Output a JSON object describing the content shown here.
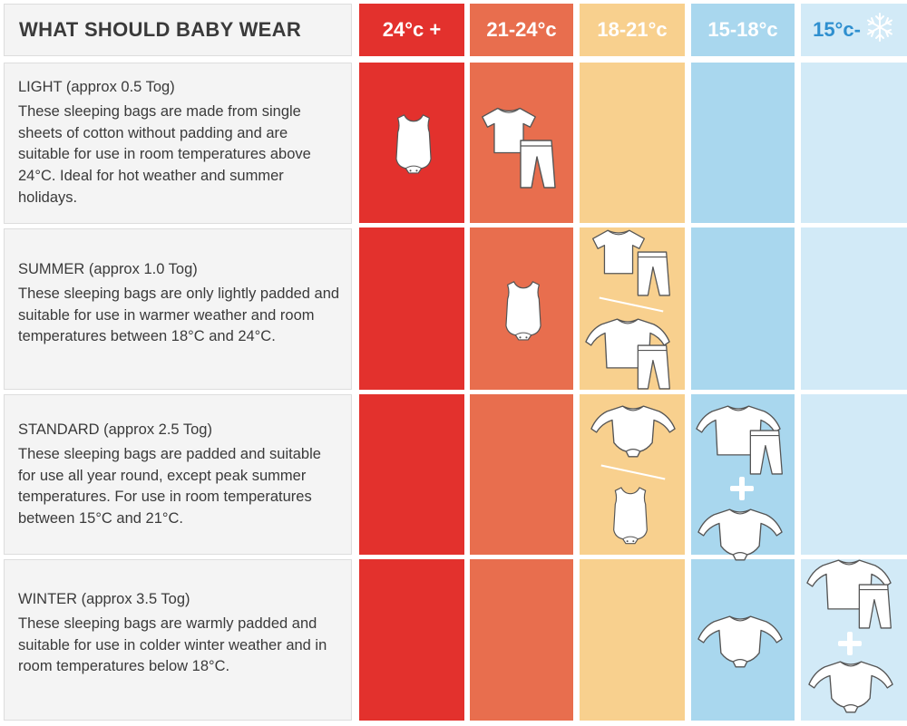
{
  "header": {
    "title": "WHAT SHOULD BABY WEAR",
    "columns": [
      {
        "label": "24°c +",
        "color": "#e3312d",
        "text_color": "#ffffff"
      },
      {
        "label": "21-24°c",
        "color": "#e86e4e",
        "text_color": "#ffffff"
      },
      {
        "label": "18-21°c",
        "color": "#f8d08e",
        "text_color": "#ffffff"
      },
      {
        "label": "15-18°c",
        "color": "#a9d7ee",
        "text_color": "#ffffff"
      },
      {
        "label": "15°c-",
        "color": "#d2eaf7",
        "text_color": "#2e8fcf"
      }
    ]
  },
  "rows": [
    {
      "title": "LIGHT (approx 0.5 Tog)",
      "description": "These sleeping bags are made from single sheets of cotton without padding and are suitable for use in room temperatures above 24°C. Ideal for hot weather and summer holidays."
    },
    {
      "title": "SUMMER (approx 1.0 Tog)",
      "description": "These sleeping bags are only lightly padded and suitable for use in warmer weather and room temperatures between 18°C and 24°C."
    },
    {
      "title": "STANDARD (approx 2.5 Tog)",
      "description": "These sleeping bags are padded and suitable for use all year round, except peak summer temperatures. For use in room temperatures between 15°C and 21°C."
    },
    {
      "title": "WINTER (approx 3.5 Tog)",
      "description": "These sleeping bags are warmly padded and suitable for use in colder winter weather and in room temperatures below 18°C."
    }
  ],
  "icons": {
    "snowflake": "snowflake-icon",
    "sleeveless_bodysuit": "sleeveless-bodysuit-icon",
    "tshirt": "tshirt-icon",
    "long_sleeve_top": "long-sleeve-top-icon",
    "long_sleeve_bodysuit": "long-sleeve-bodysuit-icon",
    "pants": "pants-icon"
  }
}
